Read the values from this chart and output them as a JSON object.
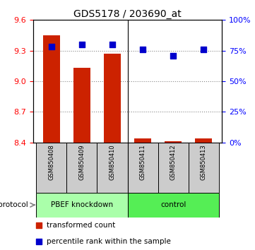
{
  "title": "GDS5178 / 203690_at",
  "samples": [
    "GSM850408",
    "GSM850409",
    "GSM850410",
    "GSM850411",
    "GSM850412",
    "GSM850413"
  ],
  "bar_values": [
    9.45,
    9.13,
    9.27,
    8.44,
    8.41,
    8.44
  ],
  "bar_base": 8.4,
  "scatter_values": [
    78,
    80,
    80,
    76,
    71,
    76
  ],
  "ylim_left": [
    8.4,
    9.6
  ],
  "ylim_right": [
    0,
    100
  ],
  "yticks_left": [
    8.4,
    8.7,
    9.0,
    9.3,
    9.6
  ],
  "yticks_right": [
    0,
    25,
    50,
    75,
    100
  ],
  "bar_color": "#cc2200",
  "scatter_color": "#0000cc",
  "group1_label": "PBEF knockdown",
  "group2_label": "control",
  "group1_color": "#aaffaa",
  "group2_color": "#55ee55",
  "protocol_label": "protocol",
  "legend_bar": "transformed count",
  "legend_scatter": "percentile rank within the sample",
  "grid_color": "#888888",
  "bar_width": 0.55,
  "scatter_marker_size": 35,
  "gray_color": "#cccccc"
}
